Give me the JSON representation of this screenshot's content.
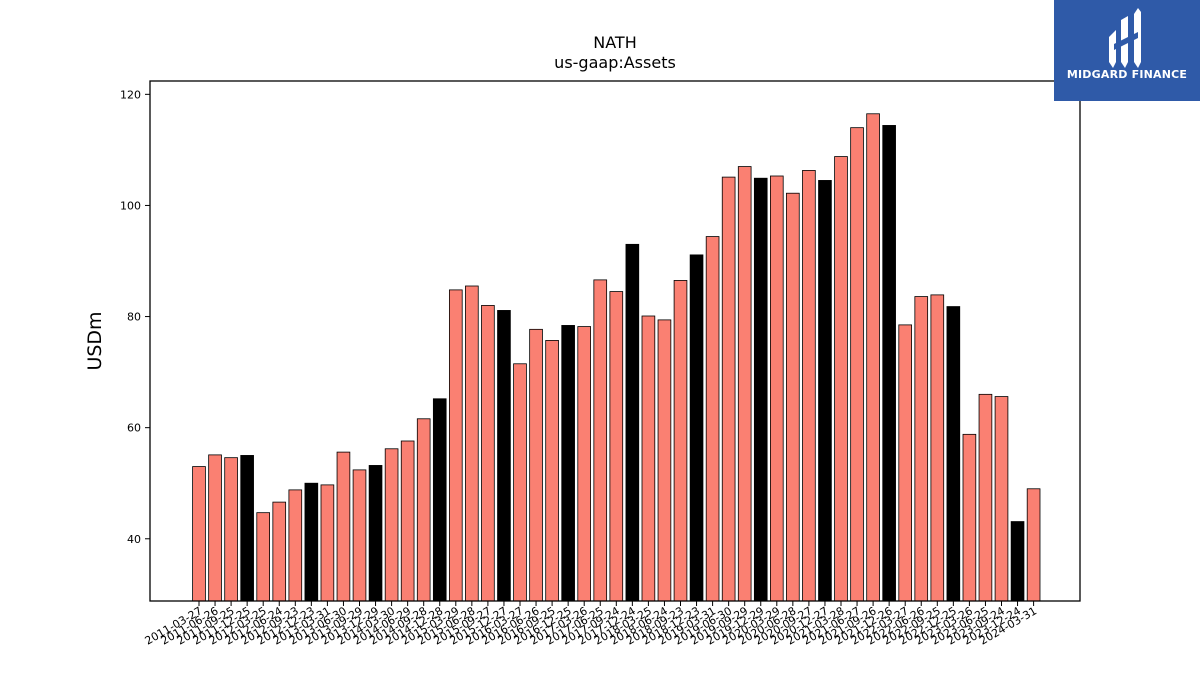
{
  "logo": {
    "text": "MIDGARD FINANCE",
    "icon": "midgard-mark-icon",
    "color": "#2f5aa8"
  },
  "chart_data": {
    "type": "bar",
    "title": "NATH",
    "subtitle": "us-gaap:Assets",
    "ylabel": "USDm",
    "xlabel": "",
    "ylim": [
      28.8,
      122.4
    ],
    "yticks": [
      40,
      60,
      80,
      100,
      120
    ],
    "grid": false,
    "colors": {
      "default": "#fa8072",
      "highlight": "#000000",
      "edge": "#000000"
    },
    "categories": [
      "2011-03-27",
      "2011-06-26",
      "2011-09-25",
      "2011-12-25",
      "2012-03-25",
      "2012-06-24",
      "2012-09-23",
      "2012-12-23",
      "2013-03-31",
      "2013-06-30",
      "2013-09-29",
      "2013-12-29",
      "2014-03-30",
      "2014-06-29",
      "2014-09-28",
      "2014-12-28",
      "2015-03-29",
      "2015-06-28",
      "2015-09-27",
      "2015-12-27",
      "2016-03-27",
      "2016-06-26",
      "2016-09-25",
      "2016-12-25",
      "2017-03-26",
      "2017-06-25",
      "2017-09-24",
      "2017-12-24",
      "2018-03-25",
      "2018-06-24",
      "2018-09-23",
      "2018-12-23",
      "2019-03-31",
      "2019-06-30",
      "2019-09-29",
      "2019-12-29",
      "2020-03-29",
      "2020-06-28",
      "2020-09-27",
      "2020-12-27",
      "2021-03-28",
      "2021-06-27",
      "2021-09-26",
      "2021-12-26",
      "2022-03-27",
      "2022-06-26",
      "2022-09-25",
      "2022-12-25",
      "2023-03-26",
      "2023-06-25",
      "2023-09-24",
      "2023-12-24",
      "2024-03-31"
    ],
    "values": [
      53.0,
      55.1,
      54.6,
      55.0,
      44.7,
      46.6,
      48.8,
      50.0,
      49.7,
      55.6,
      52.4,
      53.2,
      56.2,
      57.6,
      61.6,
      65.2,
      84.8,
      85.5,
      82.0,
      81.1,
      71.5,
      77.7,
      75.7,
      78.4,
      78.2,
      86.6,
      84.5,
      93.0,
      80.1,
      79.4,
      86.5,
      91.1,
      94.4,
      105.1,
      107.0,
      104.9,
      105.3,
      102.2,
      106.3,
      104.5,
      108.8,
      114.0,
      116.5,
      114.4,
      78.5,
      83.6,
      83.9,
      81.8,
      58.8,
      66.0,
      65.6,
      43.1,
      49.0
    ],
    "highlight": [
      false,
      false,
      false,
      true,
      false,
      false,
      false,
      true,
      false,
      false,
      false,
      true,
      false,
      false,
      false,
      true,
      false,
      false,
      false,
      true,
      false,
      false,
      false,
      true,
      false,
      false,
      false,
      true,
      false,
      false,
      false,
      true,
      false,
      false,
      false,
      true,
      false,
      false,
      false,
      true,
      false,
      false,
      false,
      true,
      false,
      false,
      false,
      true,
      false,
      false,
      false,
      true,
      false
    ]
  }
}
